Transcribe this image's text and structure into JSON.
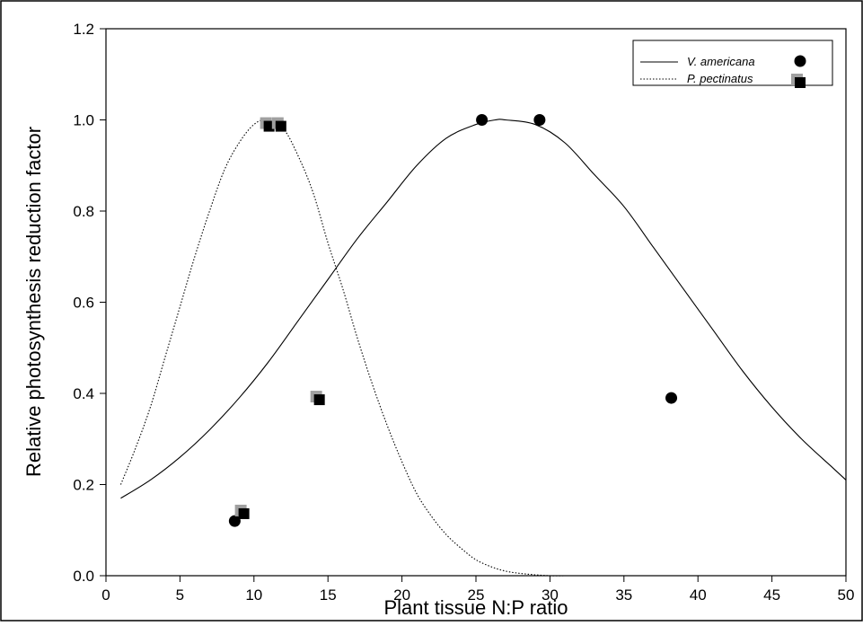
{
  "chart_data": {
    "type": "scatter",
    "title": "",
    "xlabel": "Plant tissue N:P ratio",
    "ylabel": "Relative photosynthesis reduction factor",
    "xlim": [
      0,
      50
    ],
    "ylim": [
      0.0,
      1.2
    ],
    "x_ticks": [
      "0",
      "5",
      "10",
      "15",
      "20",
      "25",
      "30",
      "35",
      "40",
      "45",
      "50"
    ],
    "y_ticks": [
      "0.0",
      "0.2",
      "0.4",
      "0.6",
      "0.8",
      "1.0",
      "1.2"
    ],
    "grid": false,
    "legend_position": "top-right",
    "series": [
      {
        "name": "V. americana",
        "marker": "circle",
        "color": "#000000",
        "line_style": "solid",
        "points": [
          {
            "x": 8.7,
            "y": 0.12
          },
          {
            "x": 25.4,
            "y": 1.0
          },
          {
            "x": 29.3,
            "y": 1.0
          },
          {
            "x": 38.2,
            "y": 0.39
          }
        ],
        "curve": {
          "x": [
            1,
            3,
            5,
            7,
            9,
            11,
            13,
            15,
            17,
            19,
            21,
            23,
            25,
            26.3,
            27,
            29,
            31,
            33,
            35,
            37,
            39,
            41,
            43,
            45,
            47,
            49,
            50
          ],
          "y": [
            0.17,
            0.21,
            0.26,
            0.32,
            0.39,
            0.47,
            0.56,
            0.65,
            0.74,
            0.82,
            0.9,
            0.96,
            0.99,
            1.0,
            1.0,
            0.99,
            0.95,
            0.88,
            0.81,
            0.72,
            0.63,
            0.54,
            0.45,
            0.37,
            0.3,
            0.24,
            0.21
          ]
        }
      },
      {
        "name": "P. pectinatus",
        "marker": "square",
        "color": "#000000",
        "shadow_color": "#a0a0a0",
        "line_style": "dotted",
        "points": [
          {
            "x": 9.2,
            "y": 0.14
          },
          {
            "x": 10.9,
            "y": 0.99
          },
          {
            "x": 11.7,
            "y": 0.99
          },
          {
            "x": 14.3,
            "y": 0.39
          }
        ],
        "curve": {
          "x": [
            1,
            2,
            3,
            4,
            5,
            6,
            7,
            8,
            9,
            10,
            10.9,
            12,
            13,
            14,
            15,
            16,
            17,
            18,
            19,
            20,
            21,
            22,
            23,
            24,
            25,
            26,
            27,
            28,
            29,
            30,
            31,
            32,
            33
          ],
          "y": [
            0.2,
            0.28,
            0.37,
            0.48,
            0.59,
            0.7,
            0.8,
            0.89,
            0.95,
            0.99,
            1.0,
            0.98,
            0.92,
            0.84,
            0.73,
            0.63,
            0.52,
            0.42,
            0.33,
            0.25,
            0.18,
            0.13,
            0.09,
            0.06,
            0.035,
            0.02,
            0.01,
            0.005,
            0.002,
            0.0,
            0.0,
            0.0,
            0.0
          ]
        }
      }
    ]
  }
}
